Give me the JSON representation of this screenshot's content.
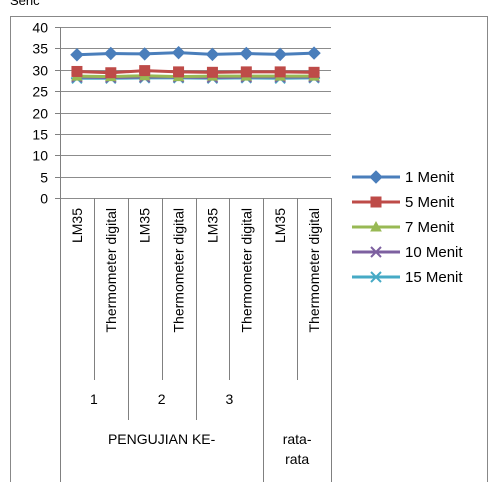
{
  "header_fragment": "Seric",
  "chart_data": {
    "type": "line",
    "title": "",
    "xlabel": "",
    "ylabel": "",
    "ylim": [
      0,
      40
    ],
    "y_ticks": [
      0,
      5,
      10,
      15,
      20,
      25,
      30,
      35,
      40
    ],
    "grid": true,
    "legend_position": "right",
    "categories": [
      {
        "sensor": "LM35",
        "trial": "1",
        "group": "PENGUJIAN KE-"
      },
      {
        "sensor": "Thermometer digital",
        "trial": "1",
        "group": "PENGUJIAN KE-"
      },
      {
        "sensor": "LM35",
        "trial": "2",
        "group": "PENGUJIAN KE-"
      },
      {
        "sensor": "Thermometer digital",
        "trial": "2",
        "group": "PENGUJIAN KE-"
      },
      {
        "sensor": "LM35",
        "trial": "3",
        "group": "PENGUJIAN KE-"
      },
      {
        "sensor": "Thermometer digital",
        "trial": "3",
        "group": "PENGUJIAN KE-"
      },
      {
        "sensor": "LM35",
        "trial": "",
        "group": "rata-rata"
      },
      {
        "sensor": "Thermometer digital",
        "trial": "",
        "group": "rata-rata"
      }
    ],
    "level2_labels": [
      "1",
      "2",
      "3"
    ],
    "level3_labels": [
      "PENGUJIAN KE-",
      "rata-\nrata"
    ],
    "series": [
      {
        "name": "1 Menit",
        "color": "#4a7ebb",
        "marker": "diamond",
        "values": [
          33.5,
          33.8,
          33.7,
          34.0,
          33.6,
          33.8,
          33.6,
          33.9
        ]
      },
      {
        "name": "5 Menit",
        "color": "#be4b48",
        "marker": "square",
        "values": [
          29.6,
          29.3,
          29.8,
          29.5,
          29.4,
          29.5,
          29.5,
          29.4
        ]
      },
      {
        "name": "7 Menit",
        "color": "#98b954",
        "marker": "triangle",
        "values": [
          28.5,
          28.4,
          28.6,
          28.4,
          28.5,
          28.5,
          28.5,
          28.5
        ]
      },
      {
        "name": "10 Menit",
        "color": "#7d60a0",
        "marker": "x",
        "values": [
          28.3,
          28.2,
          28.3,
          28.3,
          28.2,
          28.3,
          28.3,
          28.3
        ]
      },
      {
        "name": "15 Menit",
        "color": "#46aac5",
        "marker": "star",
        "values": [
          28.0,
          28.0,
          28.1,
          28.1,
          28.0,
          28.1,
          28.0,
          28.1
        ]
      }
    ]
  }
}
